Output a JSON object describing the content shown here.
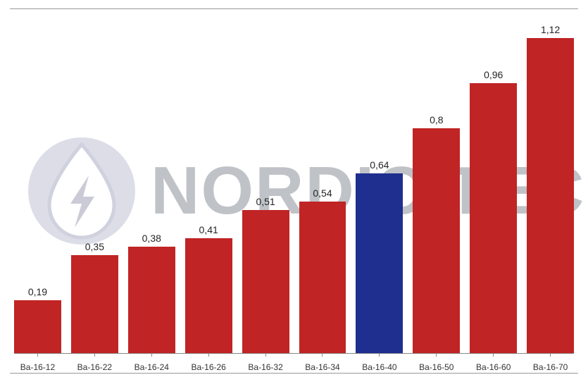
{
  "chart": {
    "type": "bar",
    "ymax": 1.12,
    "headroom_factor": 1.08,
    "value_fontsize": 14,
    "label_fontsize": 12,
    "axis_color": "#888888",
    "border_color": "#999999",
    "background_color": "#ffffff",
    "value_color": "#242424",
    "label_color": "#333333",
    "bars": [
      {
        "category": "Ba-16-12",
        "value": 0.19,
        "label": "0,19",
        "color": "#c02425"
      },
      {
        "category": "Ba-16-22",
        "value": 0.35,
        "label": "0,35",
        "color": "#c02425"
      },
      {
        "category": "Ba-16-24",
        "value": 0.38,
        "label": "0,38",
        "color": "#c02425"
      },
      {
        "category": "Ba-16-26",
        "value": 0.41,
        "label": "0,41",
        "color": "#c02425"
      },
      {
        "category": "Ba-16-32",
        "value": 0.51,
        "label": "0,51",
        "color": "#c02425"
      },
      {
        "category": "Ba-16-34",
        "value": 0.54,
        "label": "0,54",
        "color": "#c02425"
      },
      {
        "category": "Ba-16-40",
        "value": 0.64,
        "label": "0,64",
        "color": "#1f2f8f"
      },
      {
        "category": "Ba-16-50",
        "value": 0.8,
        "label": "0,8",
        "color": "#c02425"
      },
      {
        "category": "Ba-16-60",
        "value": 0.96,
        "label": "0,96",
        "color": "#c02425"
      },
      {
        "category": "Ba-16-70",
        "value": 1.12,
        "label": "1,12",
        "color": "#c02425"
      }
    ]
  },
  "watermark": {
    "text": "NORDIC TEC",
    "text_color": "#606a74",
    "text_fontsize": 96,
    "opacity": 0.4,
    "logo": {
      "circle_fill": "#a9abc4",
      "drop_fill": "#ffffff",
      "drop_stroke": "#8c8fae",
      "bolt_fill": "#7d7f9a"
    }
  }
}
